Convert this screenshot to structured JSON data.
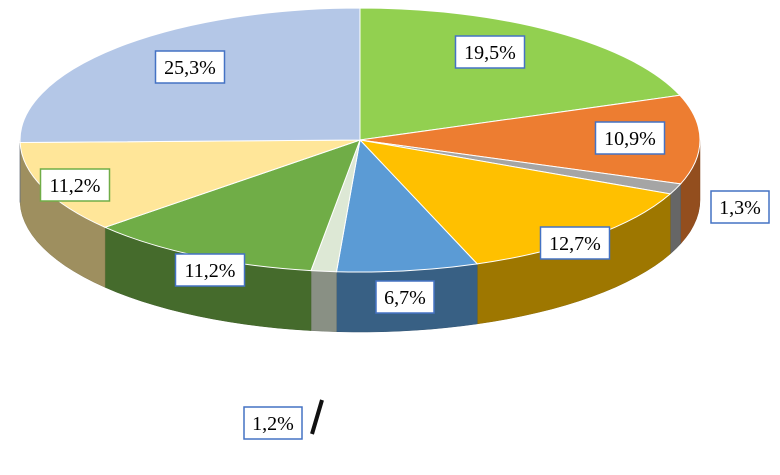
{
  "chart_data": {
    "type": "pie",
    "style": "3d-exploded-tilt",
    "title": "",
    "legend": "none",
    "slices": [
      {
        "label": "19,5%",
        "value": 19.5,
        "color": "#92D050"
      },
      {
        "label": "10,9%",
        "value": 10.9,
        "color": "#ED7D31"
      },
      {
        "label": "1,3%",
        "value": 1.3,
        "color": "#A5A5A5"
      },
      {
        "label": "12,7%",
        "value": 12.7,
        "color": "#FFC000"
      },
      {
        "label": "6,7%",
        "value": 6.7,
        "color": "#5B9BD5"
      },
      {
        "label": "1,2%",
        "value": 1.2,
        "color": "#DDE8D5"
      },
      {
        "label": "11,2%",
        "value": 11.2,
        "color": "#70AD47"
      },
      {
        "label": "11,2%",
        "value": 11.2,
        "color": "#FFE699"
      },
      {
        "label": "25,3%",
        "value": 25.3,
        "color": "#B4C7E7"
      }
    ],
    "label_border_colors": [
      "#4472C4",
      "#4472C4",
      "#4472C4",
      "#4472C4",
      "#4472C4",
      "#4472C4",
      "#4472C4",
      "#70AD47",
      "#4472C4"
    ]
  }
}
